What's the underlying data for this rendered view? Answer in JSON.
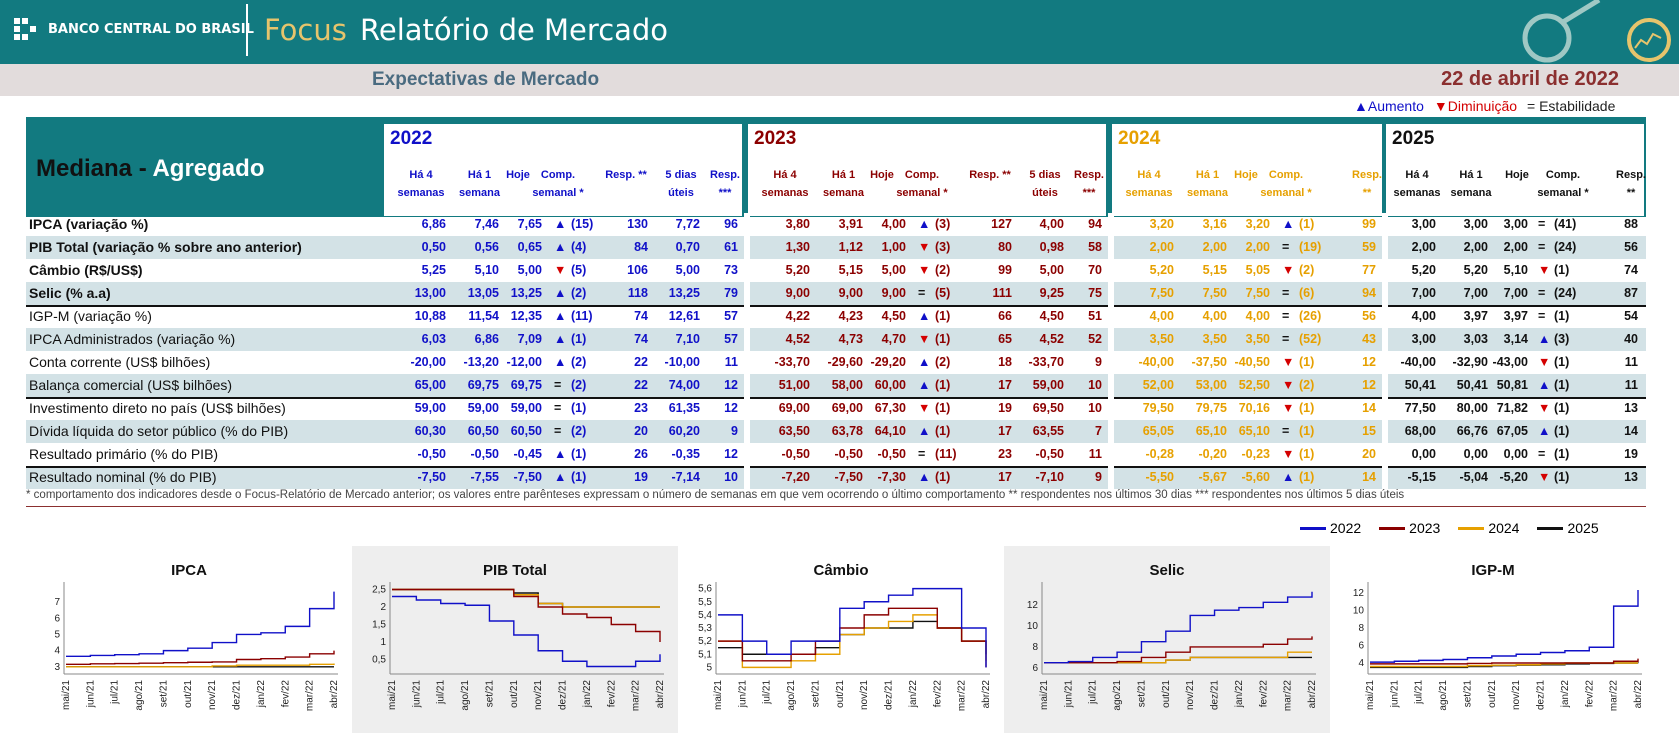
{
  "header": {
    "logo_text": "BANCO CENTRAL DO BRASIL",
    "focus": "Focus",
    "title": "Relatório de Mercado",
    "subtitle": "Expectativas de Mercado",
    "date": "22 de abril de 2022"
  },
  "legend_top": {
    "up_symbol": "▲",
    "up": "Aumento",
    "down_symbol": "▼",
    "down": "Diminuição",
    "stable_symbol": "=",
    "stable": "Estabilidade"
  },
  "table": {
    "title_a": "Mediana - ",
    "title_b": "Agregado",
    "years": [
      "2022",
      "2023",
      "2024",
      "2025"
    ],
    "hdr": {
      "ha4": "Há 4 semanas",
      "ha1": "Há 1 semana",
      "hoje": "Hoje",
      "comp": "Comp. semanal *",
      "resp": "Resp. **",
      "dias5": "5 dias úteis",
      "resp3": "Resp. ***"
    },
    "rows": [
      {
        "label": "IPCA (variação %)",
        "bold": true,
        "y2022": [
          "6,86",
          "7,46",
          "7,65",
          "▲",
          "(15)",
          "130",
          "7,72",
          "96"
        ],
        "y2023": [
          "3,80",
          "3,91",
          "4,00",
          "▲",
          "(3)",
          "127",
          "4,00",
          "94"
        ],
        "y2024": [
          "3,20",
          "3,16",
          "3,20",
          "▲",
          "(1)",
          "99"
        ],
        "y2025": [
          "3,00",
          "3,00",
          "3,00",
          "=",
          "(41)",
          "88"
        ]
      },
      {
        "label": "PIB Total (variação % sobre ano anterior)",
        "bold": true,
        "y2022": [
          "0,50",
          "0,56",
          "0,65",
          "▲",
          "(4)",
          "84",
          "0,70",
          "61"
        ],
        "y2023": [
          "1,30",
          "1,12",
          "1,00",
          "▼",
          "(3)",
          "80",
          "0,98",
          "58"
        ],
        "y2024": [
          "2,00",
          "2,00",
          "2,00",
          "=",
          "(19)",
          "59"
        ],
        "y2025": [
          "2,00",
          "2,00",
          "2,00",
          "=",
          "(24)",
          "56"
        ]
      },
      {
        "label": "Câmbio (R$/US$)",
        "bold": true,
        "y2022": [
          "5,25",
          "5,10",
          "5,00",
          "▼",
          "(5)",
          "106",
          "5,00",
          "73"
        ],
        "y2023": [
          "5,20",
          "5,15",
          "5,00",
          "▼",
          "(2)",
          "99",
          "5,00",
          "70"
        ],
        "y2024": [
          "5,20",
          "5,15",
          "5,05",
          "▼",
          "(2)",
          "77"
        ],
        "y2025": [
          "5,20",
          "5,20",
          "5,10",
          "▼",
          "(1)",
          "74"
        ]
      },
      {
        "label": "Selic (% a.a)",
        "bold": true,
        "y2022": [
          "13,00",
          "13,05",
          "13,25",
          "▲",
          "(2)",
          "118",
          "13,25",
          "79"
        ],
        "y2023": [
          "9,00",
          "9,00",
          "9,00",
          "=",
          "(5)",
          "111",
          "9,25",
          "75"
        ],
        "y2024": [
          "7,50",
          "7,50",
          "7,50",
          "=",
          "(6)",
          "94"
        ],
        "y2025": [
          "7,00",
          "7,00",
          "7,00",
          "=",
          "(24)",
          "87"
        ]
      },
      {
        "label": "IGP-M (variação %)",
        "bold": false,
        "y2022": [
          "10,88",
          "11,54",
          "12,35",
          "▲",
          "(11)",
          "74",
          "12,61",
          "57"
        ],
        "y2023": [
          "4,22",
          "4,23",
          "4,50",
          "▲",
          "(1)",
          "66",
          "4,50",
          "51"
        ],
        "y2024": [
          "4,00",
          "4,00",
          "4,00",
          "=",
          "(26)",
          "56"
        ],
        "y2025": [
          "4,00",
          "3,97",
          "3,97",
          "=",
          "(1)",
          "54"
        ]
      },
      {
        "label": "IPCA Administrados (variação %)",
        "bold": false,
        "y2022": [
          "6,03",
          "6,86",
          "7,09",
          "▲",
          "(1)",
          "74",
          "7,10",
          "57"
        ],
        "y2023": [
          "4,52",
          "4,73",
          "4,70",
          "▼",
          "(1)",
          "65",
          "4,52",
          "52"
        ],
        "y2024": [
          "3,50",
          "3,50",
          "3,50",
          "=",
          "(52)",
          "43"
        ],
        "y2025": [
          "3,00",
          "3,03",
          "3,14",
          "▲",
          "(3)",
          "40"
        ]
      },
      {
        "label": "Conta corrente (US$ bilhões)",
        "bold": false,
        "y2022": [
          "-20,00",
          "-13,20",
          "-12,00",
          "▲",
          "(2)",
          "22",
          "-10,00",
          "11"
        ],
        "y2023": [
          "-33,70",
          "-29,60",
          "-29,20",
          "▲",
          "(2)",
          "18",
          "-33,70",
          "9"
        ],
        "y2024": [
          "-40,00",
          "-37,50",
          "-40,50",
          "▼",
          "(1)",
          "12"
        ],
        "y2025": [
          "-40,00",
          "-32,90",
          "-43,00",
          "▼",
          "(1)",
          "11"
        ]
      },
      {
        "label": "Balança comercial (US$ bilhões)",
        "bold": false,
        "y2022": [
          "65,00",
          "69,75",
          "69,75",
          "=",
          "(2)",
          "22",
          "74,00",
          "12"
        ],
        "y2023": [
          "51,00",
          "58,00",
          "60,00",
          "▲",
          "(1)",
          "17",
          "59,00",
          "10"
        ],
        "y2024": [
          "52,00",
          "53,00",
          "52,50",
          "▼",
          "(2)",
          "12"
        ],
        "y2025": [
          "50,41",
          "50,41",
          "50,81",
          "▲",
          "(1)",
          "11"
        ]
      },
      {
        "label": "Investimento direto no país (US$ bilhões)",
        "bold": false,
        "y2022": [
          "59,00",
          "59,00",
          "59,00",
          "=",
          "(1)",
          "23",
          "61,35",
          "12"
        ],
        "y2023": [
          "69,00",
          "69,00",
          "67,30",
          "▼",
          "(1)",
          "19",
          "69,50",
          "10"
        ],
        "y2024": [
          "79,50",
          "79,75",
          "70,16",
          "▼",
          "(1)",
          "14"
        ],
        "y2025": [
          "77,50",
          "80,00",
          "71,82",
          "▼",
          "(1)",
          "13"
        ]
      },
      {
        "label": "Dívida líquida do setor público (% do PIB)",
        "bold": false,
        "y2022": [
          "60,30",
          "60,50",
          "60,50",
          "=",
          "(2)",
          "20",
          "60,20",
          "9"
        ],
        "y2023": [
          "63,50",
          "63,78",
          "64,10",
          "▲",
          "(1)",
          "17",
          "63,55",
          "7"
        ],
        "y2024": [
          "65,05",
          "65,10",
          "65,10",
          "=",
          "(1)",
          "15"
        ],
        "y2025": [
          "68,00",
          "66,76",
          "67,05",
          "▲",
          "(1)",
          "14"
        ]
      },
      {
        "label": "Resultado primário (% do PIB)",
        "bold": false,
        "y2022": [
          "-0,50",
          "-0,50",
          "-0,45",
          "▲",
          "(1)",
          "26",
          "-0,35",
          "12"
        ],
        "y2023": [
          "-0,50",
          "-0,50",
          "-0,50",
          "=",
          "(11)",
          "23",
          "-0,50",
          "11"
        ],
        "y2024": [
          "-0,28",
          "-0,20",
          "-0,23",
          "▼",
          "(1)",
          "20"
        ],
        "y2025": [
          "0,00",
          "0,00",
          "0,00",
          "=",
          "(1)",
          "19"
        ]
      },
      {
        "label": "Resultado nominal (% do PIB)",
        "bold": false,
        "y2022": [
          "-7,50",
          "-7,55",
          "-7,50",
          "▲",
          "(1)",
          "19",
          "-7,14",
          "10"
        ],
        "y2023": [
          "-7,20",
          "-7,50",
          "-7,30",
          "▲",
          "(1)",
          "17",
          "-7,10",
          "9"
        ],
        "y2024": [
          "-5,50",
          "-5,67",
          "-5,60",
          "▲",
          "(1)",
          "14"
        ],
        "y2025": [
          "-5,15",
          "-5,04",
          "-5,20",
          "▼",
          "(1)",
          "13"
        ]
      }
    ]
  },
  "footnote": "* comportamento dos indicadores desde o Focus-Relatório de Mercado anterior; os valores entre parênteses expressam o número de semanas em que vem ocorrendo o último comportamento ** respondentes nos últimos 30 dias *** respondentes nos últimos 5 dias úteis",
  "colors": {
    "teal": "#127a80",
    "y2022": "#1010c8",
    "y2023": "#8b0000",
    "y2024": "#e6a000",
    "y2025": "#111111",
    "up": "#1010c8",
    "down": "#d40000"
  },
  "chart_data": [
    {
      "type": "line",
      "title": "IPCA",
      "x": [
        "mai/21",
        "jun/21",
        "jul/21",
        "ago/21",
        "set/21",
        "out/21",
        "nov/21",
        "dez/21",
        "jan/22",
        "fev/22",
        "mar/22",
        "abr/22"
      ],
      "yticks": [
        "3",
        "4",
        "5",
        "6",
        "7"
      ],
      "ylim": [
        2.8,
        8.0
      ],
      "series": [
        {
          "name": "2022",
          "values": [
            3.65,
            3.7,
            3.75,
            3.8,
            4.0,
            4.15,
            4.5,
            5.0,
            5.1,
            5.5,
            6.6,
            7.65
          ]
        },
        {
          "name": "2023",
          "values": [
            3.15,
            3.18,
            3.2,
            3.22,
            3.25,
            3.28,
            3.3,
            3.45,
            3.5,
            3.6,
            3.8,
            4.0
          ]
        },
        {
          "name": "2024",
          "values": [
            3.0,
            3.0,
            3.0,
            3.0,
            3.0,
            3.0,
            3.05,
            3.1,
            3.1,
            3.1,
            3.15,
            3.2
          ]
        },
        {
          "name": "2025",
          "values": [
            3.0,
            3.0,
            3.0,
            3.0,
            3.0,
            3.0,
            3.0,
            3.0,
            3.0,
            3.0,
            3.0,
            3.0
          ]
        }
      ]
    },
    {
      "type": "line",
      "title": "PIB Total",
      "x": [
        "mai/21",
        "jun/21",
        "jul/21",
        "ago/21",
        "set/21",
        "out/21",
        "nov/21",
        "dez/21",
        "jan/22",
        "fev/22",
        "mar/22",
        "abr/22"
      ],
      "yticks": [
        "0,5",
        "1",
        "1,5",
        "2",
        "2,5"
      ],
      "ylim": [
        0.2,
        2.6
      ],
      "series": [
        {
          "name": "2022",
          "values": [
            2.3,
            2.2,
            2.1,
            2.05,
            1.6,
            1.2,
            0.75,
            0.45,
            0.3,
            0.3,
            0.45,
            0.65
          ]
        },
        {
          "name": "2023",
          "values": [
            2.5,
            2.5,
            2.5,
            2.5,
            2.5,
            2.3,
            2.0,
            1.8,
            1.7,
            1.5,
            1.3,
            1.0
          ]
        },
        {
          "name": "2024",
          "values": [
            2.5,
            2.5,
            2.5,
            2.5,
            2.5,
            2.35,
            2.1,
            2.0,
            2.0,
            2.0,
            2.0,
            2.0
          ]
        },
        {
          "name": "2025",
          "values": [
            2.5,
            2.5,
            2.5,
            2.5,
            2.5,
            2.4,
            2.1,
            2.0,
            2.0,
            2.0,
            2.0,
            2.0
          ]
        }
      ]
    },
    {
      "type": "line",
      "title": "Câmbio",
      "x": [
        "mai/21",
        "jun/21",
        "jul/21",
        "ago/21",
        "set/21",
        "out/21",
        "nov/21",
        "dez/21",
        "jan/22",
        "fev/22",
        "mar/22",
        "abr/22"
      ],
      "yticks": [
        "5",
        "5,1",
        "5,2",
        "5,3",
        "5,4",
        "5,5",
        "5,6"
      ],
      "ylim": [
        4.98,
        5.62
      ],
      "series": [
        {
          "name": "2022",
          "values": [
            5.4,
            5.2,
            5.1,
            5.2,
            5.2,
            5.45,
            5.5,
            5.55,
            5.6,
            5.6,
            5.3,
            5.0
          ]
        },
        {
          "name": "2023",
          "values": [
            5.2,
            5.05,
            5.05,
            5.1,
            5.2,
            5.3,
            5.4,
            5.45,
            5.45,
            5.3,
            5.2,
            5.0
          ]
        },
        {
          "name": "2024",
          "values": [
            5.2,
            5.0,
            5.0,
            5.05,
            5.1,
            5.25,
            5.3,
            5.35,
            5.4,
            5.3,
            5.2,
            5.05
          ]
        },
        {
          "name": "2025",
          "values": [
            5.15,
            5.1,
            5.1,
            5.1,
            5.15,
            5.25,
            5.3,
            5.3,
            5.35,
            5.3,
            5.2,
            5.1
          ]
        }
      ]
    },
    {
      "type": "line",
      "title": "Selic",
      "x": [
        "mai/21",
        "jun/21",
        "jul/21",
        "ago/21",
        "set/21",
        "out/21",
        "nov/21",
        "dez/21",
        "jan/22",
        "fev/22",
        "mar/22",
        "abr/22"
      ],
      "yticks": [
        "6",
        "8",
        "10",
        "12"
      ],
      "ylim": [
        5.8,
        13.8
      ],
      "series": [
        {
          "name": "2022",
          "values": [
            6.5,
            6.6,
            7.0,
            7.5,
            8.5,
            9.5,
            11.0,
            11.5,
            11.75,
            12.25,
            12.75,
            13.25
          ]
        },
        {
          "name": "2023",
          "values": [
            6.5,
            6.5,
            6.5,
            6.6,
            7.0,
            7.5,
            8.0,
            8.0,
            8.0,
            8.25,
            8.75,
            9.0
          ]
        },
        {
          "name": "2024",
          "values": [
            6.5,
            6.5,
            6.5,
            6.5,
            6.5,
            6.75,
            7.0,
            7.0,
            7.0,
            7.0,
            7.5,
            7.5
          ]
        },
        {
          "name": "2025",
          "values": [
            6.5,
            6.5,
            6.5,
            6.5,
            6.5,
            6.75,
            7.0,
            7.0,
            7.0,
            7.0,
            7.0,
            7.0
          ]
        }
      ]
    },
    {
      "type": "line",
      "title": "IGP-M",
      "x": [
        "mai/21",
        "jun/21",
        "jul/21",
        "ago/21",
        "set/21",
        "out/21",
        "nov/21",
        "dez/21",
        "jan/22",
        "fev/22",
        "mar/22",
        "abr/22"
      ],
      "yticks": [
        "4",
        "6",
        "8",
        "10",
        "12"
      ],
      "ylim": [
        3.2,
        12.8
      ],
      "series": [
        {
          "name": "2022",
          "values": [
            4.1,
            4.2,
            4.3,
            4.4,
            4.6,
            4.8,
            5.0,
            5.2,
            5.4,
            5.8,
            10.5,
            12.35
          ]
        },
        {
          "name": "2023",
          "values": [
            3.9,
            3.9,
            3.9,
            3.9,
            3.95,
            4.0,
            4.0,
            4.0,
            4.0,
            4.0,
            4.2,
            4.5
          ]
        },
        {
          "name": "2024",
          "values": [
            3.6,
            3.6,
            3.6,
            3.6,
            3.7,
            3.75,
            3.8,
            3.9,
            4.0,
            4.0,
            4.0,
            4.0
          ]
        },
        {
          "name": "2025",
          "values": [
            3.5,
            3.5,
            3.5,
            3.5,
            3.6,
            3.7,
            3.75,
            3.8,
            3.9,
            3.95,
            4.0,
            3.97
          ]
        }
      ]
    }
  ]
}
